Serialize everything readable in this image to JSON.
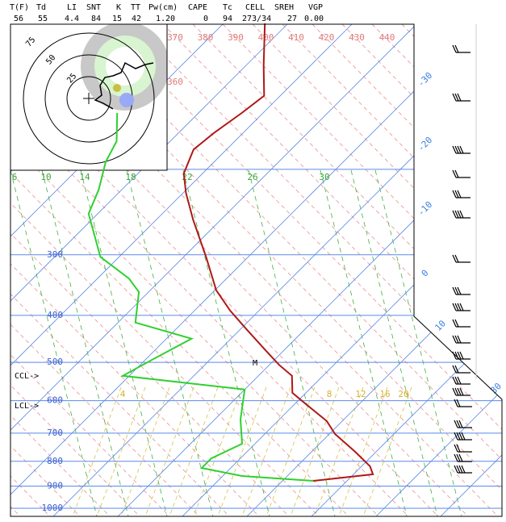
{
  "header": {
    "labels": [
      "T(F)",
      "Td",
      "LI",
      "SNT",
      "K",
      "TT",
      "Pw(cm)",
      "CAPE",
      "Tc",
      "CELL",
      "SREH",
      "VGP"
    ],
    "values": [
      "56",
      "55",
      "4.4",
      "84",
      "15",
      "42",
      "1.20",
      "0",
      "94",
      "273/34",
      "27",
      "0.00"
    ]
  },
  "pressure_labels": [
    300,
    400,
    500,
    600,
    700,
    800,
    900,
    1000
  ],
  "isotherm_labels": [
    -30,
    -20,
    -10,
    0,
    10,
    30
  ],
  "theta_labels": [
    370,
    380,
    390,
    400,
    410,
    420,
    430,
    440
  ],
  "theta_label_inner": 360,
  "mixing_ratio_labels_top": [
    6,
    10,
    14,
    18,
    22,
    26,
    30
  ],
  "mixing_ratio_labels_low": [
    4,
    8,
    12,
    16,
    20
  ],
  "hodograph_rings": [
    75,
    50,
    25
  ],
  "annotations": [
    "CCL->",
    "LCL->",
    "M"
  ],
  "temperature": {
    "pressure": [
      878,
      851,
      819,
      765,
      703,
      661,
      612,
      578,
      533,
      506,
      474,
      427,
      391,
      355,
      304,
      254,
      224,
      204,
      182,
      168,
      153,
      141,
      122,
      100
    ],
    "temp": [
      14.8,
      23.0,
      21.3,
      16.8,
      10.9,
      7.6,
      2.0,
      -2.1,
      -4.8,
      -8.5,
      -12.6,
      -19.1,
      -24.5,
      -29.8,
      -36.4,
      -44.3,
      -49.5,
      -52.9,
      -55.1,
      -54.5,
      -53.3,
      -52.5,
      -57.3,
      -63.6
    ]
  },
  "dewpoint": {
    "pressure": [
      878,
      858,
      826,
      789,
      736,
      656,
      569,
      533,
      493,
      447,
      414,
      358,
      336,
      303,
      247,
      220,
      193,
      175,
      153
    ],
    "temp": [
      14.8,
      3.0,
      -4.5,
      -4.5,
      -2.0,
      -6.0,
      -10.0,
      -31.0,
      -28.9,
      -26.1,
      -37.3,
      -41.5,
      -45.1,
      -52.9,
      -61.4,
      -63.6,
      -66.8,
      -68.3,
      -72.6
    ]
  }
}
